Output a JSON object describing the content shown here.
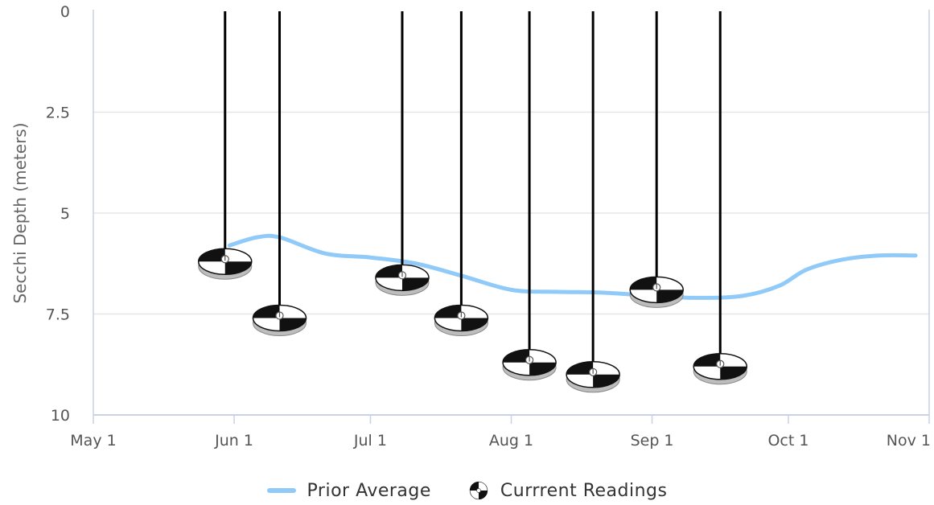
{
  "chart_data": {
    "type": "line",
    "xlabel": "",
    "ylabel": "Secchi Depth (meters)",
    "y_reversed": true,
    "ylim": [
      0,
      10
    ],
    "yticks": [
      "0",
      "2.5",
      "5",
      "7.5",
      "10"
    ],
    "ytick_values": [
      0,
      2.5,
      5,
      7.5,
      10
    ],
    "xlim": [
      "2023-05-01",
      "2023-11-01"
    ],
    "xticks": [
      "May 1",
      "Jun 1",
      "Jul 1",
      "Aug 1",
      "Sep 1",
      "Oct 1",
      "Nov 1"
    ],
    "xtick_dates": [
      "2023-05-01",
      "2023-06-01",
      "2023-07-01",
      "2023-08-01",
      "2023-09-01",
      "2023-10-01",
      "2023-11-01"
    ],
    "grid": true,
    "legend_position": "bottom-center",
    "series": [
      {
        "name": "Prior Average",
        "kind": "line",
        "color": "#90caf9",
        "points": [
          {
            "x": "2023-05-31",
            "y": 5.8
          },
          {
            "x": "2023-06-06",
            "y": 5.6
          },
          {
            "x": "2023-06-11",
            "y": 5.6
          },
          {
            "x": "2023-06-21",
            "y": 6.0
          },
          {
            "x": "2023-07-01",
            "y": 6.1
          },
          {
            "x": "2023-07-11",
            "y": 6.25
          },
          {
            "x": "2023-07-21",
            "y": 6.55
          },
          {
            "x": "2023-08-01",
            "y": 6.9
          },
          {
            "x": "2023-08-11",
            "y": 6.95
          },
          {
            "x": "2023-08-21",
            "y": 6.97
          },
          {
            "x": "2023-09-01",
            "y": 7.05
          },
          {
            "x": "2023-09-11",
            "y": 7.1
          },
          {
            "x": "2023-09-21",
            "y": 7.05
          },
          {
            "x": "2023-09-29",
            "y": 6.8
          },
          {
            "x": "2023-10-05",
            "y": 6.4
          },
          {
            "x": "2023-10-13",
            "y": 6.15
          },
          {
            "x": "2023-10-21",
            "y": 6.05
          },
          {
            "x": "2023-10-29",
            "y": 6.05
          }
        ]
      },
      {
        "name": "Currrent Readings",
        "kind": "secchi-disc",
        "color": "#000000",
        "points": [
          {
            "x": "2023-05-30",
            "y": 6.2
          },
          {
            "x": "2023-06-11",
            "y": 7.6
          },
          {
            "x": "2023-07-08",
            "y": 6.6
          },
          {
            "x": "2023-07-21",
            "y": 7.6
          },
          {
            "x": "2023-08-05",
            "y": 8.7
          },
          {
            "x": "2023-08-19",
            "y": 9.0
          },
          {
            "x": "2023-09-02",
            "y": 6.9
          },
          {
            "x": "2023-09-16",
            "y": 8.8
          }
        ]
      }
    ]
  },
  "legend": {
    "items": [
      {
        "label": "Prior Average",
        "color": "#90caf9"
      },
      {
        "label": "Currrent Readings",
        "icon": "secchi-disc-icon"
      }
    ]
  }
}
